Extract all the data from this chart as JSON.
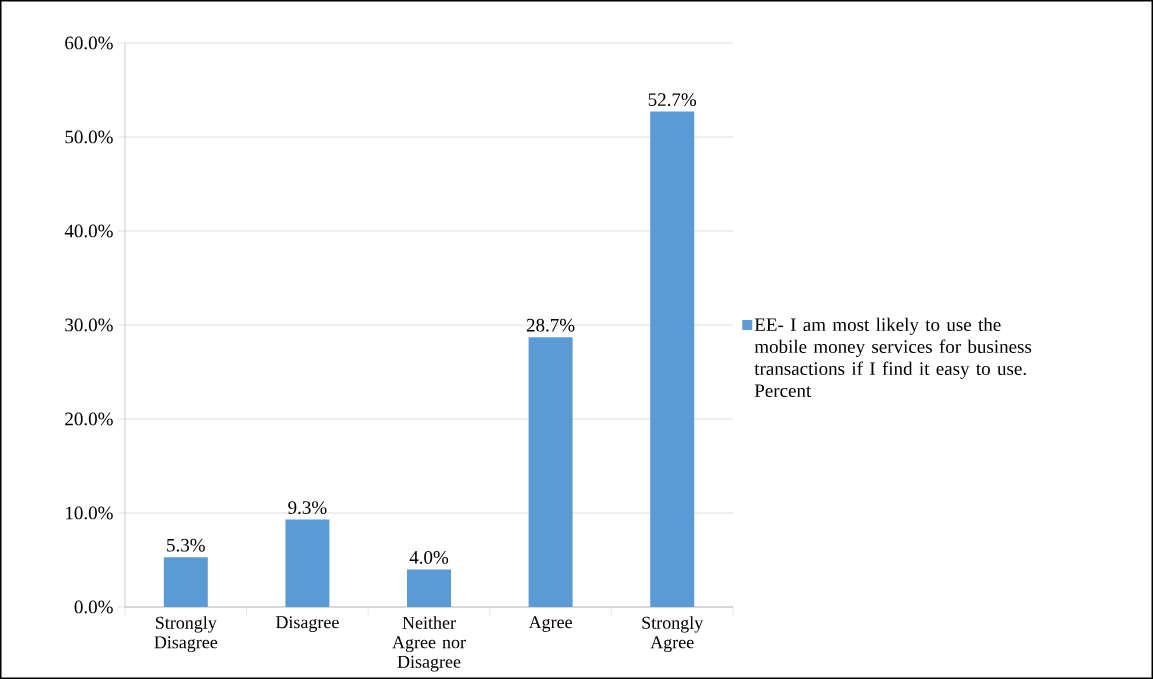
{
  "chart_data": {
    "type": "bar",
    "categories": [
      "Strongly Disagree",
      "Disagree",
      "Neither Agree nor Disagree",
      "Agree",
      "Strongly Agree"
    ],
    "series": [
      {
        "name": "EE- I am most likely to use the mobile money services for business transactions if I find it easy to use. Percent",
        "color": "#5b9bd5",
        "values": [
          5.3,
          9.3,
          4.0,
          28.7,
          52.7
        ],
        "value_labels": [
          "5.3%",
          "9.3%",
          "4.0%",
          "28.7%",
          "52.7%"
        ]
      }
    ],
    "ylim": [
      0,
      60
    ],
    "yticks": [
      {
        "value": 0,
        "label": "0.0%"
      },
      {
        "value": 10,
        "label": "10.0%"
      },
      {
        "value": 20,
        "label": "20.0%"
      },
      {
        "value": 30,
        "label": "30.0%"
      },
      {
        "value": 40,
        "label": "40.0%"
      },
      {
        "value": 50,
        "label": "50.0%"
      },
      {
        "value": 60,
        "label": "60.0%"
      }
    ],
    "grid": "y",
    "legend": "right"
  }
}
